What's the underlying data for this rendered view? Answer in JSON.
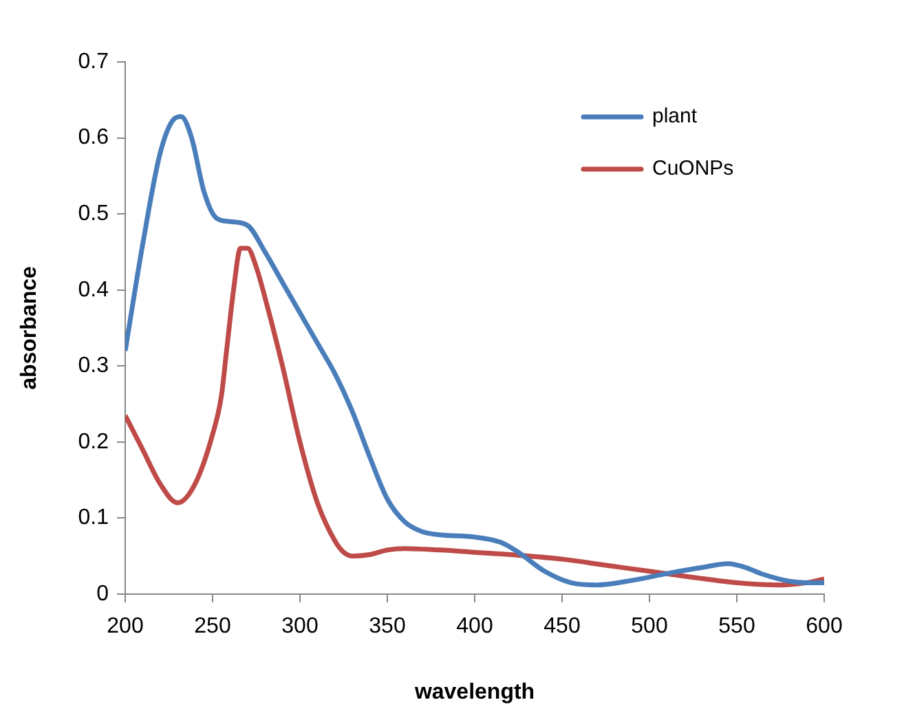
{
  "chart_data": {
    "type": "line",
    "xlabel": "wavelength",
    "ylabel": "absorbance",
    "xlim": [
      200,
      600
    ],
    "xticks": [
      200,
      250,
      300,
      350,
      400,
      450,
      500,
      550,
      600
    ],
    "ylim": [
      0,
      0.7
    ],
    "yticks": [
      0,
      0.1,
      0.2,
      0.3,
      0.4,
      0.5,
      0.6,
      0.7
    ],
    "grid": false,
    "legend": "top right",
    "marker": "none",
    "line_style": "solid",
    "series": [
      {
        "name": "plant",
        "color": "#4a7ebb",
        "x": [
          200,
          210,
          220,
          228,
          232,
          238,
          245,
          252,
          260,
          270,
          280,
          290,
          300,
          310,
          320,
          330,
          340,
          350,
          360,
          370,
          380,
          400,
          415,
          425,
          440,
          455,
          470,
          490,
          510,
          530,
          545,
          555,
          565,
          580,
          590,
          600
        ],
        "values": [
          0.32,
          0.46,
          0.58,
          0.625,
          0.628,
          0.6,
          0.53,
          0.495,
          0.49,
          0.485,
          0.45,
          0.41,
          0.37,
          0.33,
          0.29,
          0.24,
          0.18,
          0.125,
          0.095,
          0.082,
          0.078,
          0.075,
          0.068,
          0.055,
          0.03,
          0.015,
          0.012,
          0.018,
          0.027,
          0.035,
          0.04,
          0.035,
          0.026,
          0.017,
          0.015,
          0.015
        ]
      },
      {
        "name": "CuONPs",
        "color": "#be4b48",
        "x": [
          200,
          210,
          220,
          230,
          240,
          250,
          255,
          258,
          262,
          266,
          270,
          275,
          280,
          290,
          300,
          310,
          320,
          325,
          330,
          340,
          350,
          360,
          380,
          400,
          420,
          450,
          475,
          500,
          525,
          550,
          575,
          590,
          600
        ],
        "values": [
          0.235,
          0.19,
          0.145,
          0.12,
          0.145,
          0.21,
          0.26,
          0.32,
          0.4,
          0.455,
          0.455,
          0.43,
          0.39,
          0.3,
          0.2,
          0.12,
          0.07,
          0.055,
          0.05,
          0.052,
          0.058,
          0.06,
          0.058,
          0.055,
          0.052,
          0.046,
          0.038,
          0.03,
          0.022,
          0.015,
          0.012,
          0.015,
          0.02
        ]
      }
    ]
  }
}
